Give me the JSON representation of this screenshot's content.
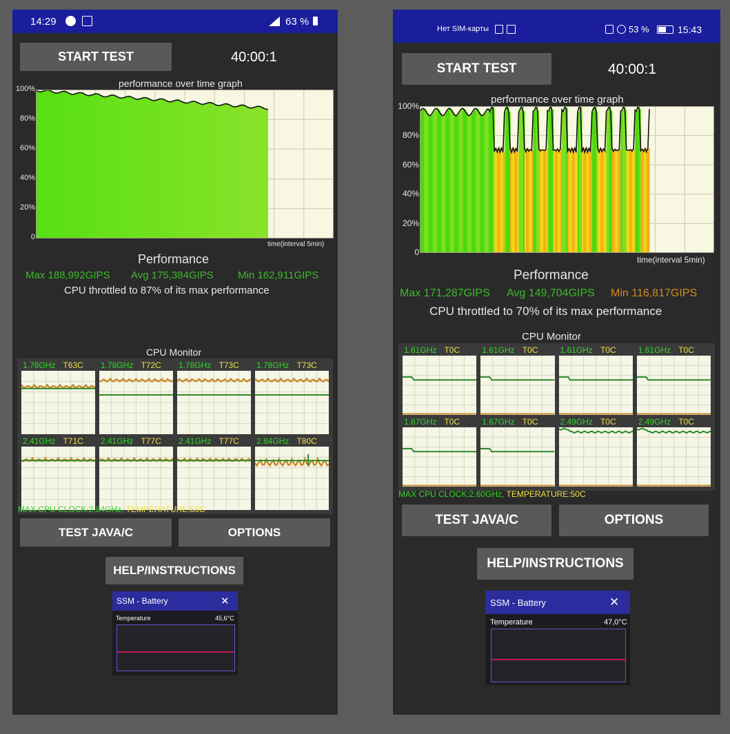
{
  "phones": [
    {
      "status": {
        "time": "14:29",
        "battery": "63 %"
      },
      "start_test": "START TEST",
      "timer": "40:00:1",
      "graph": {
        "title": "performance over time graph",
        "y_ticks": [
          "100%",
          "80%",
          "60%",
          "40%",
          "20%",
          "0"
        ],
        "x_label": "time(interval 5min)"
      },
      "performance": {
        "title": "Performance",
        "max": "Max 188,992GIPS",
        "avg": "Avg 175,384GIPS",
        "min": "Min 162,911GIPS",
        "throttle": "CPU throttled to 87% of its max performance"
      },
      "cpu_monitor": {
        "title": "CPU Monitor",
        "cores": [
          {
            "freq": "1.78GHz",
            "temp": "T63C"
          },
          {
            "freq": "1.78GHz",
            "temp": "T72C"
          },
          {
            "freq": "1.78GHz",
            "temp": "T73C"
          },
          {
            "freq": "1.78GHz",
            "temp": "T73C"
          },
          {
            "freq": "2.41GHz",
            "temp": "T71C"
          },
          {
            "freq": "2.41GHz",
            "temp": "T77C"
          },
          {
            "freq": "2.41GHz",
            "temp": "T77C"
          },
          {
            "freq": "2.84GHz",
            "temp": "T80C"
          }
        ],
        "max_clock": "MAX CPU CLOCK:2.84GHz,",
        "temperature": "TEMPERATURE:83C"
      },
      "test_java": "TEST JAVA/C",
      "options": "OPTIONS",
      "help": "HELP/INSTRUCTIONS",
      "ssm": {
        "title": "SSM - Battery",
        "close": "✕",
        "metric": "Temperature",
        "value": "45,6°C"
      }
    },
    {
      "status": {
        "carrier": "Нет SIM-карты",
        "time": "15:43",
        "battery": "53 %"
      },
      "start_test": "START TEST",
      "timer": "40:00:1",
      "graph": {
        "title": "performance over time graph",
        "y_ticks": [
          "100%",
          "80%",
          "60%",
          "40%",
          "20%",
          "0"
        ],
        "x_label": "time(interval 5min)"
      },
      "performance": {
        "title": "Performance",
        "max": "Max 171,287GIPS",
        "avg": "Avg 149,704GIPS",
        "min": "Min 116,817GIPS",
        "throttle": "CPU throttled to 70% of its max performance"
      },
      "cpu_monitor": {
        "title": "CPU Monitor",
        "cores": [
          {
            "freq": "1.61GHz",
            "temp": "T0C"
          },
          {
            "freq": "1.61GHz",
            "temp": "T0C"
          },
          {
            "freq": "1.61GHz",
            "temp": "T0C"
          },
          {
            "freq": "1.61GHz",
            "temp": "T0C"
          },
          {
            "freq": "1.67GHz",
            "temp": "T0C"
          },
          {
            "freq": "1.67GHz",
            "temp": "T0C"
          },
          {
            "freq": "2.49GHz",
            "temp": "T0C"
          },
          {
            "freq": "2.49GHz",
            "temp": "T0C"
          }
        ],
        "max_clock": "MAX CPU CLOCK:2.60GHz,",
        "temperature": "TEMPERATURE:50C"
      },
      "test_java": "TEST JAVA/C",
      "options": "OPTIONS",
      "help": "HELP/INSTRUCTIONS",
      "ssm": {
        "title": "SSM - Battery",
        "close": "✕",
        "metric": "Temperature",
        "value": "47,0°C"
      }
    }
  ],
  "colors": {
    "status_bar": "#1a1d9c",
    "panel": "#2a2a2a",
    "button": "#595959",
    "graph_green": "#5de81a",
    "graph_yellow": "#f3d81a",
    "stat_green": "#3cba29",
    "stat_orange": "#d28a1e"
  }
}
